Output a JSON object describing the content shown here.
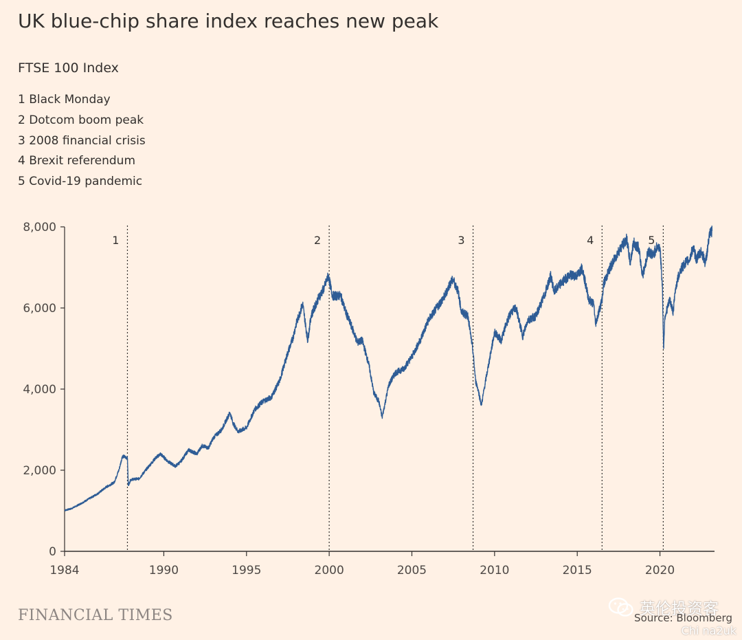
{
  "title": "UK blue-chip share index reaches new peak",
  "subtitle": "FTSE 100 Index",
  "events": [
    "1 Black Monday",
    "2 Dotcom boom peak",
    "3 2008 financial crisis",
    "4 Brexit referendum",
    "5 Covid-19 pandemic"
  ],
  "footer": {
    "logo": "FINANCIAL TIMES",
    "source": "Source: Bloomberg",
    "watermark": "英伦投资客",
    "watermark_sub": "Chi na2uk",
    "watermark_icon": "wechat-icon"
  },
  "colors": {
    "background": "#fff1e5",
    "line": "#2e5c95",
    "axis": "#33302e"
  },
  "chart_data": {
    "type": "line",
    "xlim": [
      1984,
      2023.3
    ],
    "ylim": [
      0,
      8000
    ],
    "xticks": [
      1984,
      1990,
      1995,
      2000,
      2005,
      2010,
      2015,
      2020
    ],
    "yticks": [
      0,
      2000,
      4000,
      6000,
      8000
    ],
    "ytick_labels": [
      "0",
      "2,000",
      "4,000",
      "6,000",
      "8,000"
    ],
    "grid": false,
    "markers": [
      {
        "label": "1",
        "x": 1987.8
      },
      {
        "label": "2",
        "x": 2000.0
      },
      {
        "label": "3",
        "x": 2008.7
      },
      {
        "label": "4",
        "x": 2016.5
      },
      {
        "label": "5",
        "x": 2020.2
      }
    ],
    "series": [
      {
        "x": [
          1984.0,
          1984.4,
          1985.0,
          1985.5,
          1986.0,
          1986.5,
          1987.0,
          1987.3,
          1987.5,
          1987.8,
          1987.85,
          1988.0,
          1988.5,
          1989.0,
          1989.5,
          1989.8,
          1990.3,
          1990.7,
          1991.0,
          1991.5,
          1992.0,
          1992.3,
          1992.7,
          1993.0,
          1993.5,
          1994.0,
          1994.2,
          1994.5,
          1995.0,
          1995.5,
          1996.0,
          1996.5,
          1997.0,
          1997.5,
          1997.8,
          1998.0,
          1998.4,
          1998.7,
          1998.9,
          1999.3,
          1999.7,
          1999.95,
          2000.2,
          2000.7,
          2001.0,
          2001.4,
          2001.7,
          2002.0,
          2002.4,
          2002.7,
          2003.0,
          2003.2,
          2003.6,
          2004.0,
          2004.5,
          2005.0,
          2005.5,
          2006.0,
          2006.5,
          2007.0,
          2007.3,
          2007.5,
          2007.8,
          2008.0,
          2008.4,
          2008.7,
          2008.85,
          2009.0,
          2009.2,
          2009.5,
          2010.0,
          2010.4,
          2010.7,
          2011.0,
          2011.3,
          2011.7,
          2012.0,
          2012.5,
          2013.0,
          2013.4,
          2013.6,
          2014.0,
          2014.5,
          2015.0,
          2015.3,
          2015.7,
          2016.0,
          2016.1,
          2016.5,
          2016.6,
          2017.0,
          2017.5,
          2018.0,
          2018.2,
          2018.4,
          2018.7,
          2018.95,
          2019.3,
          2019.6,
          2019.8,
          2020.0,
          2020.15,
          2020.22,
          2020.3,
          2020.6,
          2020.8,
          2020.95,
          2021.2,
          2021.5,
          2021.8,
          2022.0,
          2022.2,
          2022.5,
          2022.75,
          2023.0,
          2023.15
        ],
        "values": [
          1010,
          1050,
          1180,
          1300,
          1420,
          1580,
          1700,
          2020,
          2350,
          2300,
          1620,
          1770,
          1790,
          2050,
          2300,
          2400,
          2200,
          2100,
          2200,
          2500,
          2400,
          2600,
          2550,
          2800,
          3000,
          3420,
          3150,
          2950,
          3050,
          3500,
          3700,
          3800,
          4200,
          4900,
          5250,
          5600,
          6100,
          5200,
          5800,
          6200,
          6500,
          6800,
          6300,
          6300,
          5900,
          5500,
          5150,
          5200,
          4600,
          3900,
          3700,
          3300,
          4100,
          4400,
          4500,
          4800,
          5200,
          5700,
          6000,
          6300,
          6600,
          6700,
          6400,
          5900,
          5800,
          4900,
          4200,
          4000,
          3600,
          4300,
          5400,
          5200,
          5600,
          5900,
          6000,
          5300,
          5700,
          5800,
          6300,
          6800,
          6400,
          6600,
          6800,
          6800,
          7000,
          6200,
          6100,
          5600,
          6200,
          6600,
          7000,
          7400,
          7700,
          7100,
          7600,
          7500,
          6800,
          7400,
          7300,
          7500,
          7500,
          6500,
          5000,
          5800,
          6200,
          5900,
          6500,
          6900,
          7100,
          7200,
          7500,
          7200,
          7400,
          7100,
          7800,
          7900
        ]
      }
    ]
  }
}
